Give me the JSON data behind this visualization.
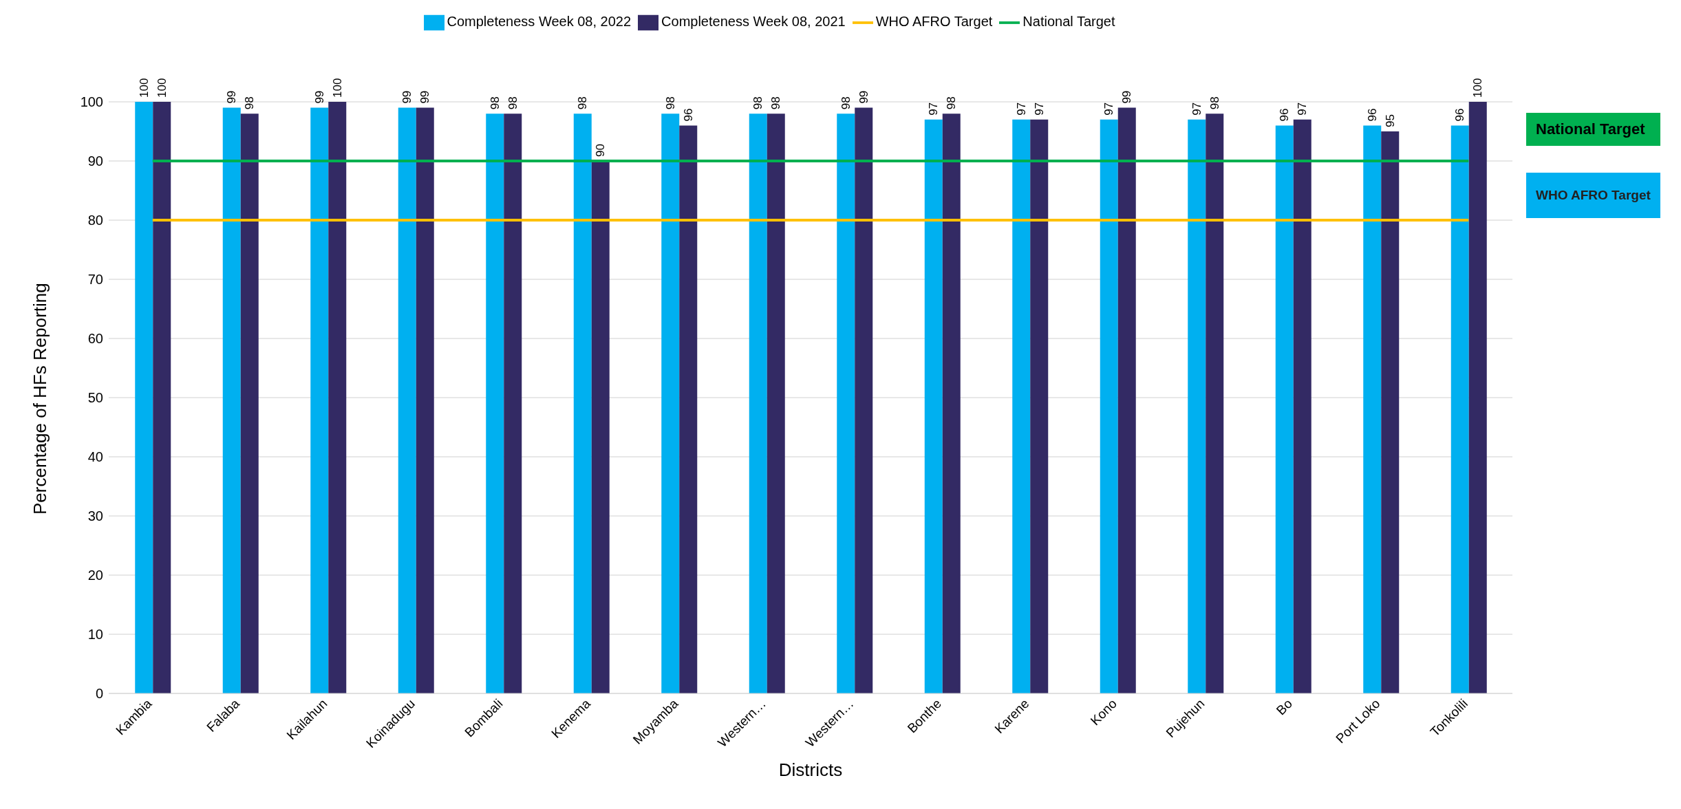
{
  "chart_data": {
    "type": "bar",
    "xlabel": "Districts",
    "ylabel": "Percentage of HFs Reporting",
    "categories": [
      "Kambia",
      "Falaba",
      "Kailahun",
      "Koinadugu",
      "Bombali",
      "Kenema",
      "Moyamba",
      "Western…",
      "Western…",
      "Bonthe",
      "Karene",
      "Kono",
      "Pujehun",
      "Bo",
      "Port Loko",
      "Tonkolili"
    ],
    "series": [
      {
        "name": "Completeness Week 08, 2022",
        "color": "#00b0f0",
        "values": [
          100,
          99,
          99,
          99,
          98,
          98,
          98,
          98,
          98,
          97,
          97,
          97,
          97,
          96,
          96,
          96
        ],
        "value_labels": [
          "100",
          "99",
          "99",
          "99",
          "98",
          "98",
          "98",
          "98",
          "98",
          "97",
          "97",
          "97",
          "97",
          "96",
          "96",
          "96"
        ]
      },
      {
        "name": "Completeness Week 08, 2021",
        "color": "#332a64",
        "values": [
          100,
          98,
          100,
          99,
          98,
          90,
          96,
          98,
          99,
          98,
          97,
          99,
          98,
          97,
          95,
          100
        ],
        "value_labels": [
          "100",
          "98",
          "100",
          "99",
          "98",
          "90",
          "96",
          "98",
          "99",
          "98",
          "97",
          "99",
          "98",
          "97",
          "95",
          "100"
        ]
      },
      {
        "name": "WHO AFRO Target",
        "type": "line",
        "color": "#ffc000",
        "values": [
          80,
          80,
          80,
          80,
          80,
          80,
          80,
          80,
          80,
          80,
          80,
          80,
          80,
          80,
          80,
          80
        ]
      },
      {
        "name": "National Target",
        "type": "line",
        "color": "#00b050",
        "values": [
          90,
          90,
          90,
          90,
          90,
          90,
          90,
          90,
          90,
          90,
          90,
          90,
          90,
          90,
          90,
          90
        ]
      }
    ],
    "annotations": [
      "National Target",
      "WHO AFRO Target"
    ],
    "ylim": [
      0,
      100
    ],
    "yticks": [
      0,
      10,
      20,
      30,
      40,
      50,
      60,
      70,
      80,
      90,
      100
    ],
    "grid": "y",
    "legend": "top",
    "marker": "none"
  }
}
